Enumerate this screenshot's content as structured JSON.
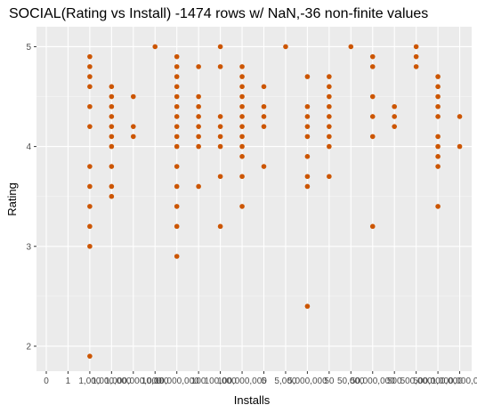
{
  "chart_data": {
    "type": "scatter",
    "title": "SOCIAL(Rating vs Install) -1474 rows w/ NaN,-36 non-finite values",
    "xlabel": "Installs",
    "ylabel": "Rating",
    "x_axis": "categorical",
    "categories": [
      "0",
      "1",
      "1,000",
      "1,000,000",
      "1,000,000,000",
      "10,000",
      "10,000,000",
      "100",
      "100,000",
      "100,000,000",
      "5",
      "5,000",
      "5,000,000",
      "50",
      "50,000",
      "50,000,000",
      "500",
      "500,000",
      "500,000,000",
      "1,000,000,000"
    ],
    "y_ticks": [
      2,
      3,
      4,
      5
    ],
    "ylim": [
      1.75,
      5.2
    ],
    "grid": true,
    "point_color": "#cc5500",
    "panel_color": "#ebebeb",
    "points": [
      {
        "x": "1,000",
        "y": [
          1.9,
          3.0,
          3.2,
          3.4,
          3.6,
          3.8,
          4.2,
          4.4,
          4.6,
          4.7,
          4.8,
          4.9
        ]
      },
      {
        "x": "1,000,000",
        "y": [
          3.5,
          3.6,
          3.8,
          4.0,
          4.1,
          4.2,
          4.3,
          4.4,
          4.5,
          4.6
        ]
      },
      {
        "x": "1,000,000,000",
        "y": [
          4.1,
          4.2,
          4.5
        ]
      },
      {
        "x": "10,000",
        "y": [
          5.0
        ]
      },
      {
        "x": "10,000,000",
        "y": [
          2.9,
          3.2,
          3.4,
          3.6,
          3.8,
          4.0,
          4.1,
          4.2,
          4.3,
          4.4,
          4.5,
          4.6,
          4.7,
          4.8,
          4.9
        ]
      },
      {
        "x": "100",
        "y": [
          3.6,
          4.0,
          4.1,
          4.2,
          4.3,
          4.4,
          4.5,
          4.8
        ]
      },
      {
        "x": "100,000",
        "y": [
          3.2,
          3.7,
          4.0,
          4.1,
          4.2,
          4.3,
          4.8,
          5.0
        ]
      },
      {
        "x": "100,000,000",
        "y": [
          3.4,
          3.7,
          3.9,
          4.0,
          4.1,
          4.2,
          4.3,
          4.4,
          4.5,
          4.6,
          4.7,
          4.8
        ]
      },
      {
        "x": "5",
        "y": [
          3.8,
          4.2,
          4.3,
          4.4,
          4.6
        ]
      },
      {
        "x": "5,000",
        "y": [
          5.0
        ]
      },
      {
        "x": "5,000,000",
        "y": [
          2.4,
          3.6,
          3.7,
          3.9,
          4.1,
          4.2,
          4.3,
          4.4,
          4.7
        ]
      },
      {
        "x": "50",
        "y": [
          3.7,
          4.0,
          4.1,
          4.2,
          4.3,
          4.4,
          4.5,
          4.6,
          4.7
        ]
      },
      {
        "x": "50,000",
        "y": [
          5.0
        ]
      },
      {
        "x": "50,000,000",
        "y": [
          3.2,
          4.1,
          4.3,
          4.5,
          4.8,
          4.9
        ]
      },
      {
        "x": "500",
        "y": [
          4.2,
          4.3,
          4.4
        ]
      },
      {
        "x": "500,000",
        "y": [
          4.8,
          4.9,
          5.0
        ]
      },
      {
        "x": "500,000,000",
        "y": [
          3.4,
          3.8,
          3.9,
          4.0,
          4.1,
          4.3,
          4.4,
          4.5,
          4.6,
          4.7
        ]
      },
      {
        "x": "1,000,000,000",
        "y": [
          4.0,
          4.3
        ]
      }
    ]
  }
}
